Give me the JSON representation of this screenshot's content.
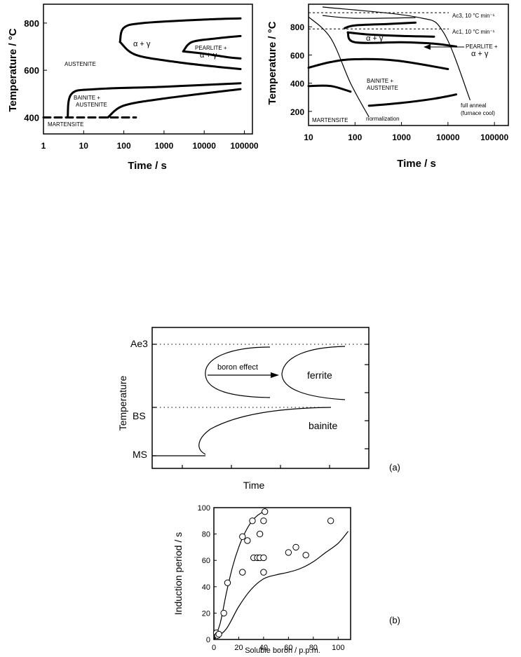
{
  "chart_data": [
    {
      "type": "line",
      "ylabel": "Temperature / °C",
      "xlabel": "Time / s",
      "x_scale": "log",
      "xticks": [
        "1",
        "10",
        "100",
        "1000",
        "10000",
        "100000"
      ],
      "yticks": [
        "400",
        "600",
        "800"
      ],
      "ylim": [
        330,
        880
      ],
      "regions": [
        "AUSTENITE",
        "α + γ",
        "PEARLITE +",
        "α + γ",
        "BAINITE +",
        "AUSTENITE",
        "MARTENSITE"
      ],
      "series": [
        {
          "values": [
            [
              80,
              720
            ],
            [
              100,
              780
            ],
            [
              300,
              800
            ],
            [
              10000,
              815
            ],
            [
              80000,
              820
            ]
          ]
        },
        {
          "values": [
            [
              80,
              720
            ],
            [
              200,
              665
            ],
            [
              2000,
              635
            ],
            [
              20000,
              615
            ],
            [
              80000,
              605
            ]
          ]
        },
        {
          "values": [
            [
              3000,
              680
            ],
            [
              5000,
              720
            ],
            [
              20000,
              735
            ],
            [
              80000,
              745
            ]
          ]
        },
        {
          "values": [
            [
              3000,
              680
            ],
            [
              10000,
              670
            ],
            [
              40000,
              655
            ],
            [
              80000,
              650
            ]
          ]
        },
        {
          "values": [
            [
              4,
              400
            ],
            [
              5,
              500
            ],
            [
              20,
              520
            ],
            [
              1000,
              530
            ],
            [
              80000,
              545
            ]
          ]
        },
        {
          "values": [
            [
              40,
              400
            ],
            [
              100,
              450
            ],
            [
              1000,
              480
            ],
            [
              80000,
              520
            ]
          ]
        },
        {
          "values": [
            [
              1,
              400
            ],
            [
              200,
              400
            ]
          ]
        }
      ]
    },
    {
      "type": "line",
      "ylabel": "Temperature / °C",
      "xlabel": "Time / s",
      "x_scale": "log",
      "xticks": [
        "10",
        "100",
        "1000",
        "10000",
        "100000"
      ],
      "yticks": [
        "200",
        "400",
        "600",
        "800"
      ],
      "ylim": [
        100,
        960
      ],
      "ref_lines": [
        {
          "label": "Ac3, 10 °C min⁻¹",
          "y": 900
        },
        {
          "label": "Ac1, 10 °C min⁻¹",
          "y": 785
        }
      ],
      "annotations": [
        "α + γ",
        "PEARLITE +",
        "α + γ",
        "BAINITE +",
        "AUSTENITE",
        "MARTENSITE",
        "normalization",
        "full anneal",
        "(furnace cool)"
      ],
      "series": [
        {
          "values": [
            [
              20,
              880
            ],
            [
              100,
              860
            ],
            [
              2000,
              865
            ]
          ]
        },
        {
          "values": [
            [
              60,
              790
            ],
            [
              100,
              810
            ],
            [
              500,
              820
            ],
            [
              2000,
              830
            ]
          ]
        },
        {
          "values": [
            [
              70,
              760
            ],
            [
              200,
              745
            ],
            [
              1000,
              735
            ],
            [
              5000,
              730
            ]
          ]
        },
        {
          "values": [
            [
              70,
              760
            ],
            [
              100,
              690
            ],
            [
              1000,
              690
            ],
            [
              5000,
              680
            ],
            [
              15000,
              660
            ]
          ]
        },
        {
          "values": [
            [
              10,
              510
            ],
            [
              30,
              550
            ],
            [
              100,
              570
            ],
            [
              800,
              560
            ],
            [
              10000,
              500
            ]
          ]
        },
        {
          "values": [
            [
              10,
              380
            ],
            [
              30,
              380
            ],
            [
              80,
              340
            ]
          ]
        },
        {
          "values": [
            [
              200,
              240
            ],
            [
              1000,
              260
            ],
            [
              5000,
              290
            ],
            [
              15000,
              320
            ]
          ]
        },
        {
          "values": [
            [
              10,
              870
            ],
            [
              30,
              720
            ],
            [
              80,
              400
            ],
            [
              200,
              160
            ]
          ]
        },
        {
          "values": [
            [
              20,
              940
            ],
            [
              2000,
              870
            ],
            [
              8000,
              760
            ],
            [
              30000,
              280
            ]
          ]
        }
      ]
    },
    {
      "type": "line",
      "ylabel": "Temperature",
      "xlabel": "Time",
      "yticks": [
        "Ae3",
        "BS",
        "MS"
      ],
      "annotations": [
        "boron  effect",
        "ferrite",
        "bainite"
      ],
      "panel_label": "(a)"
    },
    {
      "type": "scatter",
      "xlabel": "Soluble boron / p.p.m.",
      "ylabel": "Induction period / s",
      "xlim": [
        0,
        110
      ],
      "ylim": [
        0,
        100
      ],
      "xticks": [
        "0",
        "20",
        "40",
        "60",
        "80",
        "100"
      ],
      "yticks": [
        "0",
        "20",
        "40",
        "60",
        "80",
        "100"
      ],
      "panel_label": "(b)",
      "x": [
        2,
        3,
        4,
        8,
        11,
        23,
        23,
        27,
        31,
        32,
        35,
        37,
        37,
        40,
        40,
        40,
        41,
        60,
        66,
        74,
        94
      ],
      "y": [
        5,
        3,
        4,
        20,
        43,
        51,
        78,
        75,
        90,
        62,
        62,
        80,
        62,
        90,
        62,
        51,
        97,
        66,
        70,
        64,
        90
      ],
      "fit_curves": [
        {
          "x": [
            0,
            5,
            10,
            15,
            20,
            25,
            30,
            35,
            40,
            42
          ],
          "y": [
            0,
            12,
            35,
            55,
            70,
            81,
            89,
            94,
            97,
            98
          ]
        },
        {
          "x": [
            0,
            10,
            20,
            30,
            40,
            50,
            60,
            70,
            80,
            90,
            100,
            108
          ],
          "y": [
            0,
            8,
            25,
            38,
            46,
            49,
            51,
            54,
            59,
            66,
            73,
            82
          ]
        }
      ]
    }
  ]
}
